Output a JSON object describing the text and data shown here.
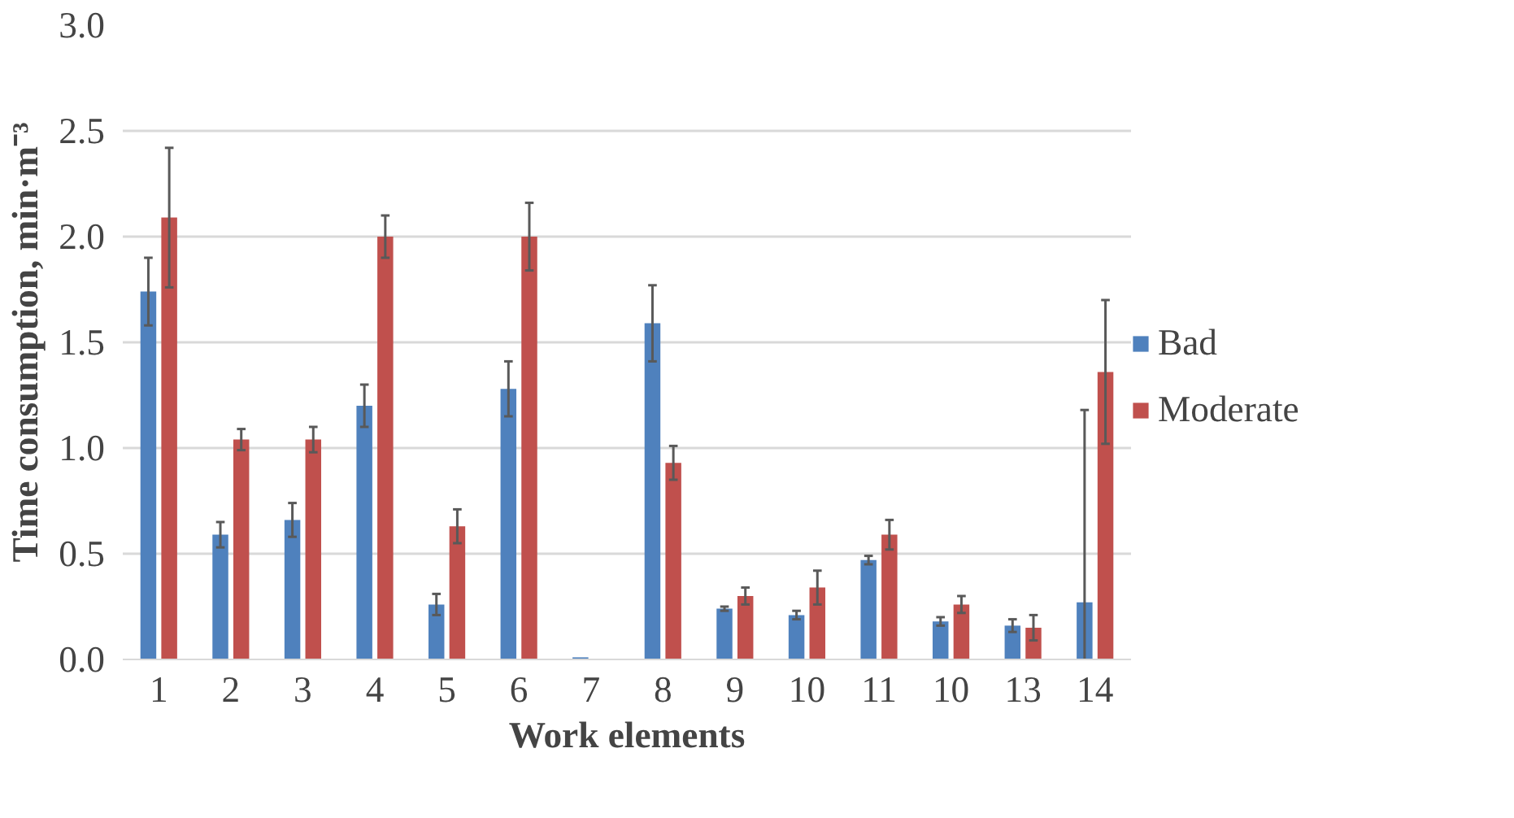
{
  "chart_data": {
    "type": "bar",
    "xlabel": "Work elements",
    "ylabel": "Time consumption, min·m⁻³",
    "categories": [
      "1",
      "2",
      "3",
      "4",
      "5",
      "6",
      "7",
      "8",
      "9",
      "10",
      "11",
      "10",
      "13",
      "14"
    ],
    "series": [
      {
        "name": "Bad",
        "color": "#4f81bd",
        "values": [
          1.74,
          0.59,
          0.66,
          1.2,
          0.26,
          1.28,
          0.01,
          1.59,
          0.24,
          0.21,
          0.47,
          0.18,
          0.16,
          0.27
        ],
        "errors": [
          0.16,
          0.06,
          0.08,
          0.1,
          0.05,
          0.13,
          null,
          0.18,
          0.01,
          0.02,
          0.02,
          0.02,
          0.03,
          [
            0,
            1.18
          ]
        ]
      },
      {
        "name": "Moderate",
        "color": "#c0504d",
        "values": [
          2.09,
          1.04,
          1.04,
          2.0,
          0.63,
          2.0,
          0,
          0.93,
          0.3,
          0.34,
          0.59,
          0.26,
          0.15,
          1.36
        ],
        "errors": [
          0.33,
          0.05,
          0.06,
          0.1,
          0.08,
          0.16,
          null,
          0.08,
          0.04,
          0.08,
          0.07,
          0.04,
          0.06,
          0.34
        ]
      }
    ],
    "ylim": [
      0,
      3.0
    ],
    "yticks": [
      {
        "value": 0,
        "label": "0.0"
      },
      {
        "value": 0.5,
        "label": "0.5"
      },
      {
        "value": 1.0,
        "label": "1.0"
      },
      {
        "value": 1.5,
        "label": "1.5"
      },
      {
        "value": 2.0,
        "label": "2.0"
      },
      {
        "value": 2.5,
        "label": "2.5"
      },
      {
        "value": 3.0,
        "label": "3.0"
      }
    ],
    "grid": "y",
    "legend": "right"
  }
}
